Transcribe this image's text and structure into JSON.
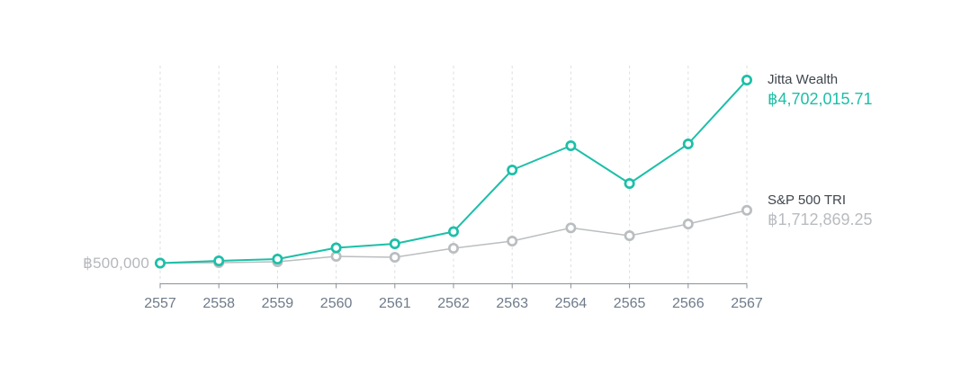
{
  "chart_data": {
    "type": "line",
    "categories": [
      "2557",
      "2558",
      "2559",
      "2560",
      "2561",
      "2562",
      "2563",
      "2564",
      "2565",
      "2566",
      "2567"
    ],
    "series": [
      {
        "name": "Jitta Wealth",
        "color": "#1cbfa8",
        "values": [
          500000,
          551600,
          592900,
          851000,
          944000,
          1222800,
          2637300,
          3195000,
          2327500,
          3236000,
          4702015.71
        ],
        "end_label": "฿4,702,015.71"
      },
      {
        "name": "S&P 500 TRI",
        "color": "#babec0",
        "values": [
          500000,
          510000,
          531000,
          655000,
          634000,
          841000,
          1006000,
          1309000,
          1130000,
          1398000,
          1712869.25
        ],
        "end_label": "฿1,712,869.25"
      }
    ],
    "title": "",
    "xlabel": "",
    "ylabel": "",
    "baseline_label": "฿500,000",
    "baseline_value": 500000,
    "ylim": [
      500000,
      5030000
    ],
    "grid": "vertical-dashed",
    "legend_position": "right"
  },
  "colors": {
    "accent_teal": "#1cbfa8",
    "series_gray": "#babec0",
    "gridline": "#dbdee0",
    "axis": "#8a9197",
    "x_label": "#6e7b8a",
    "y_label": "#b4b8bc",
    "legend_name": "#3f464d",
    "background": "#ffffff"
  }
}
